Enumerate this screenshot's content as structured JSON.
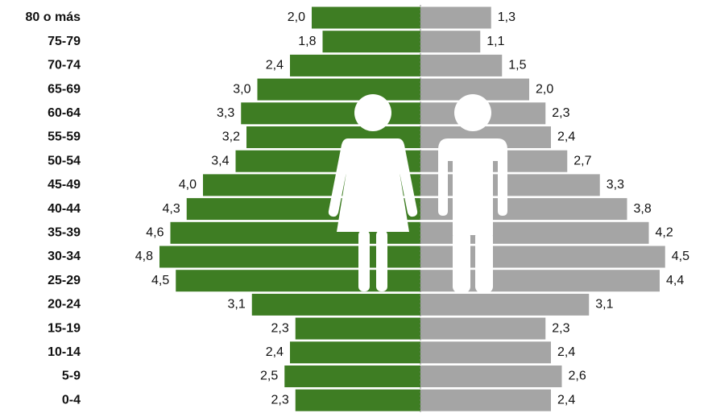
{
  "chart_data": {
    "type": "pyramid",
    "categories": [
      "80 o más",
      "75-79",
      "70-74",
      "65-69",
      "60-64",
      "55-59",
      "50-54",
      "45-49",
      "40-44",
      "35-39",
      "30-34",
      "25-29",
      "20-24",
      "15-19",
      "10-14",
      "5-9",
      "0-4"
    ],
    "series": [
      {
        "color": "#3e7d23",
        "side": "left",
        "values": [
          2.0,
          1.8,
          2.4,
          3.0,
          3.3,
          3.2,
          3.4,
          4.0,
          4.3,
          4.6,
          4.8,
          4.5,
          3.1,
          2.3,
          2.4,
          2.5,
          2.3
        ],
        "value_labels": [
          "2,0",
          "1,8",
          "2,4",
          "3,0",
          "3,3",
          "3,2",
          "3,4",
          "4,0",
          "4,3",
          "4,6",
          "4,8",
          "4,5",
          "3,1",
          "2,3",
          "2,4",
          "2,5",
          "2,3"
        ]
      },
      {
        "color": "#a5a5a5",
        "side": "right",
        "values": [
          1.3,
          1.1,
          1.5,
          2.0,
          2.3,
          2.4,
          2.7,
          3.3,
          3.8,
          4.2,
          4.5,
          4.4,
          3.1,
          2.3,
          2.4,
          2.6,
          2.4
        ],
        "value_labels": [
          "1,3",
          "1,1",
          "1,5",
          "2,0",
          "2,3",
          "2,4",
          "2,7",
          "3,3",
          "3,8",
          "4,2",
          "4,5",
          "4,4",
          "3,1",
          "2,3",
          "2,4",
          "2,6",
          "2,4"
        ]
      }
    ]
  }
}
